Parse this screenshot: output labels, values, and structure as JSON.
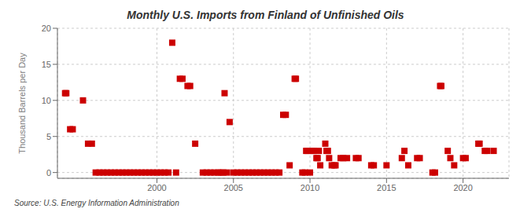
{
  "chart_data": {
    "type": "scatter",
    "title": "Monthly U.S. Imports from Finland of Unfinished Oils",
    "y_label": "Thousand Barrels per Day",
    "annotations": [
      "Source: U.S. Energy Information Administration"
    ],
    "x": [
      1994.0,
      1994.08,
      1994.33,
      1994.5,
      1995.17,
      1995.5,
      1995.75,
      1996.0,
      1996.25,
      1996.5,
      1996.75,
      1997.0,
      1997.25,
      1997.5,
      1997.75,
      1998.0,
      1998.25,
      1998.5,
      1998.75,
      1999.0,
      1999.25,
      1999.5,
      1999.75,
      2000.0,
      2000.25,
      2000.5,
      2000.75,
      2001.0,
      2001.25,
      2001.5,
      2001.67,
      2002.0,
      2002.17,
      2002.5,
      2003.0,
      2003.25,
      2003.5,
      2003.75,
      2004.0,
      2004.17,
      2004.33,
      2004.58,
      2004.42,
      2004.75,
      2005.0,
      2005.25,
      2005.5,
      2005.75,
      2006.0,
      2006.25,
      2006.5,
      2006.75,
      2007.0,
      2007.25,
      2007.5,
      2007.75,
      2008.0,
      2008.25,
      2008.42,
      2008.67,
      2009.0,
      2009.08,
      2009.5,
      2009.67,
      2009.75,
      2009.83,
      2010.0,
      2010.17,
      2010.25,
      2010.42,
      2010.5,
      2010.58,
      2010.67,
      2011.0,
      2011.08,
      2011.17,
      2011.25,
      2011.42,
      2011.58,
      2011.67,
      2012.0,
      2012.17,
      2012.42,
      2013.0,
      2013.17,
      2014.0,
      2014.17,
      2015.0,
      2016.0,
      2016.17,
      2016.42,
      2017.0,
      2017.17,
      2018.0,
      2018.17,
      2018.5,
      2018.58,
      2019.0,
      2019.17,
      2019.42,
      2020.0,
      2020.17,
      2021.0,
      2021.08,
      2021.42,
      2021.58,
      2022.0
    ],
    "values": [
      11,
      11,
      6,
      6,
      10,
      4,
      4,
      0,
      0,
      0,
      0,
      0,
      0,
      0,
      0,
      0,
      0,
      0,
      0,
      0,
      0,
      0,
      0,
      0,
      0,
      0,
      0,
      18,
      0,
      13,
      13,
      12,
      12,
      4,
      0,
      0,
      0,
      0,
      0,
      0,
      0,
      0,
      11,
      7,
      0,
      0,
      0,
      0,
      0,
      0,
      0,
      0,
      0,
      0,
      0,
      0,
      0,
      8,
      8,
      1,
      13,
      13,
      0,
      0,
      3,
      3,
      0,
      3,
      3,
      2,
      2,
      3,
      1,
      4,
      3,
      3,
      2,
      1,
      1,
      1,
      2,
      2,
      2,
      2,
      2,
      1,
      1,
      1,
      2,
      3,
      1,
      2,
      2,
      0,
      0,
      12,
      12,
      3,
      2,
      1,
      2,
      2,
      4,
      4,
      3,
      3,
      3
    ],
    "color": "#cc0000",
    "marker": "square",
    "xlim": [
      1993.5,
      2023.0
    ],
    "ylim": [
      -0.8,
      20
    ],
    "xticks": [
      2000,
      2005,
      2010,
      2015,
      2020
    ],
    "yticks": [
      0,
      5,
      10,
      15,
      20
    ],
    "grid": true
  }
}
